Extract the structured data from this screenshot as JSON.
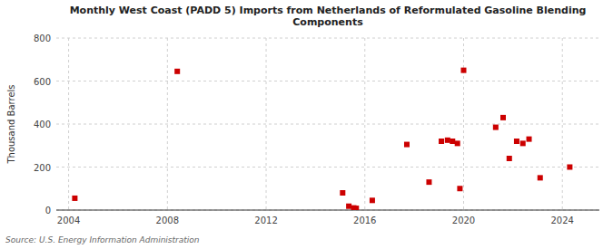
{
  "chart_data": {
    "type": "scatter",
    "title": "Monthly West Coast (PADD 5) Imports from Netherlands of Reformulated Gasoline Blending\nComponents",
    "ylabel": "Thousand Barrels",
    "source": "Source: U.S. Energy Information Administration",
    "color": "#cc0000",
    "marker": "square",
    "grid": true,
    "xlim": [
      2003.5,
      2025.5
    ],
    "ylim": [
      0,
      800
    ],
    "xticks": [
      2004,
      2008,
      2012,
      2016,
      2020,
      2024
    ],
    "yticks": [
      0,
      200,
      400,
      600,
      800
    ],
    "x": [
      2004.25,
      2008.4,
      2015.1,
      2015.35,
      2015.55,
      2015.65,
      2016.3,
      2017.7,
      2018.6,
      2019.1,
      2019.35,
      2019.55,
      2019.75,
      2019.85,
      2020.0,
      2021.3,
      2021.6,
      2021.85,
      2022.15,
      2022.4,
      2022.65,
      2023.1,
      2024.3
    ],
    "values": [
      55,
      645,
      80,
      18,
      10,
      8,
      45,
      305,
      130,
      320,
      325,
      320,
      310,
      100,
      650,
      385,
      430,
      240,
      320,
      310,
      330,
      150,
      200
    ]
  }
}
